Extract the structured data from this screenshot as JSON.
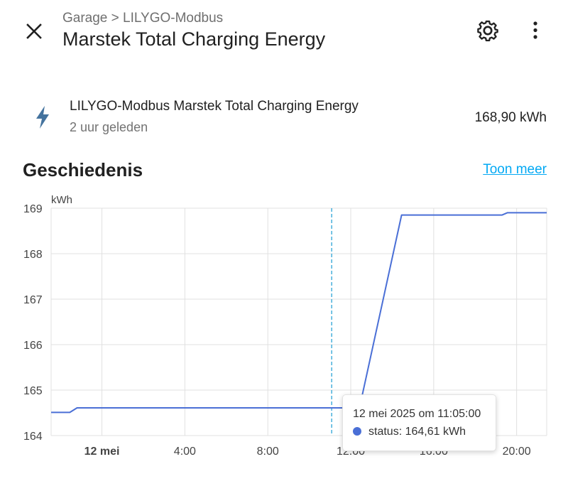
{
  "header": {
    "breadcrumb": "Garage > LILYGO-Modbus",
    "title": "Marstek Total Charging Energy"
  },
  "entity": {
    "name": "LILYGO-Modbus Marstek Total Charging Energy",
    "last_changed": "2 uur geleden",
    "value": "168,90 kWh",
    "icon": "lightning-bolt-icon"
  },
  "history": {
    "title": "Geschiedenis",
    "show_more": "Toon meer"
  },
  "tooltip": {
    "date": "12 mei 2025 om 11:05:00",
    "status": "status: 164,61 kWh"
  },
  "colors": {
    "series": "#4a6fd6",
    "accent": "#03a9f4",
    "grid": "#e0e0e0",
    "cursor": "#2ba3d6"
  },
  "chart_data": {
    "type": "line",
    "ylabel": "kWh",
    "ylim": [
      164,
      169
    ],
    "yticks": [
      "164",
      "165",
      "166",
      "167",
      "168",
      "169"
    ],
    "x_ticks": [
      {
        "label": "12 mei",
        "hour": 0,
        "bold": true
      },
      {
        "label": "4:00",
        "hour": 4
      },
      {
        "label": "8:00",
        "hour": 8
      },
      {
        "label": "12:00",
        "hour": 12
      },
      {
        "label": "16:00",
        "hour": 16
      },
      {
        "label": "20:00",
        "hour": 20
      }
    ],
    "xlim_hours": [
      -2.45,
      21.45
    ],
    "series": [
      {
        "points": [
          {
            "hour": -2.45,
            "y": 164.51
          },
          {
            "hour": -1.55,
            "y": 164.51
          },
          {
            "hour": -1.2,
            "y": 164.61
          },
          {
            "hour": 12.42,
            "y": 164.61
          },
          {
            "hour": 14.45,
            "y": 168.85
          },
          {
            "hour": 19.3,
            "y": 168.85
          },
          {
            "hour": 19.55,
            "y": 168.9
          },
          {
            "hour": 21.45,
            "y": 168.9
          }
        ]
      }
    ],
    "cursor_hour": 11.08
  }
}
